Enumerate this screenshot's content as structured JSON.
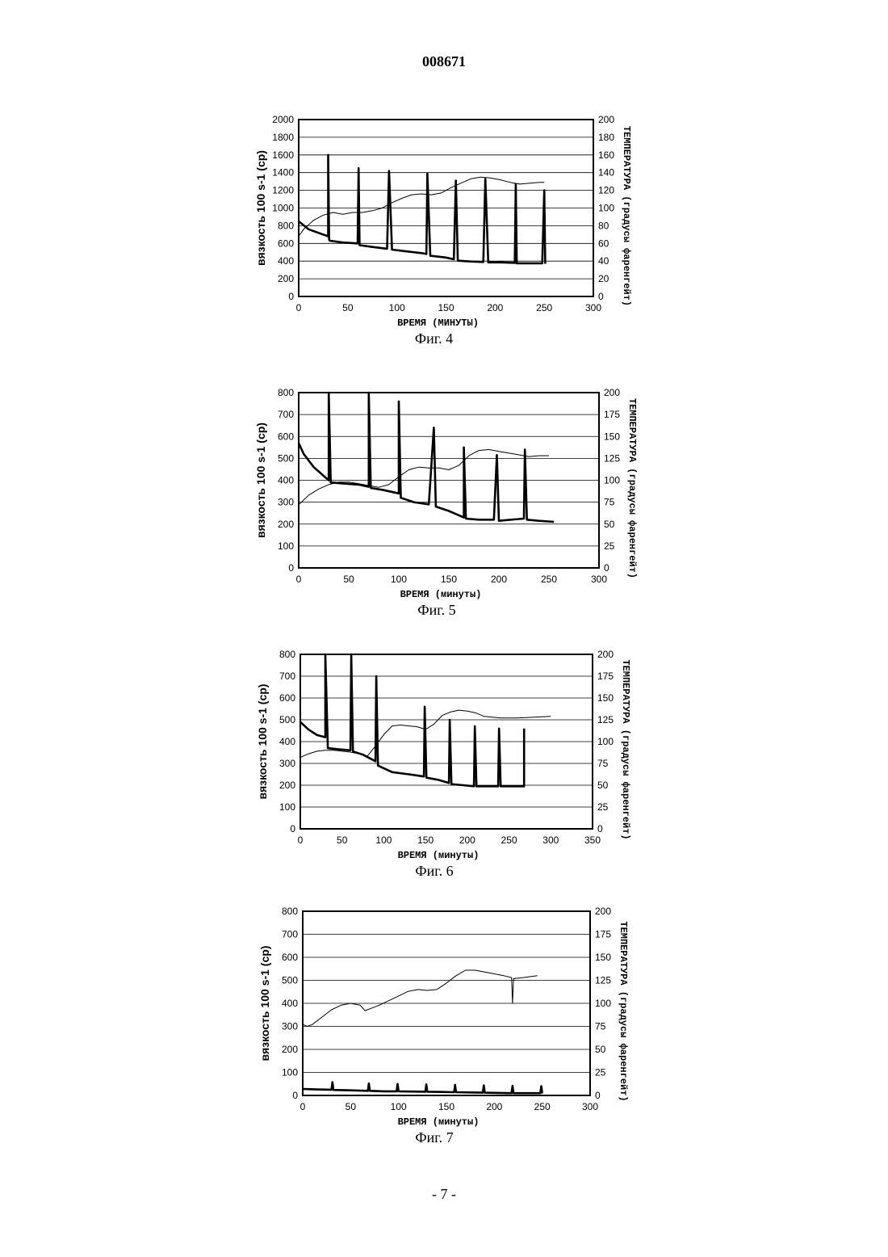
{
  "header": {
    "doc_number": "008671"
  },
  "footer": {
    "page_number": "- 7 -"
  },
  "chart_data": [
    {
      "type": "line",
      "caption": "Фиг. 4",
      "ylabel": "вязкость 100 s-1 (cp)",
      "y2label": "ТЕМПЕРАТУРА (градусы фаренгейт)",
      "xlabel": "ВРЕМЯ (МИНУТЫ)",
      "xlim": [
        0,
        300
      ],
      "xticks": [
        0,
        50,
        100,
        150,
        200,
        250,
        300
      ],
      "ylim": [
        0,
        2000
      ],
      "yticks": [
        0,
        200,
        400,
        600,
        800,
        1000,
        1200,
        1400,
        1600,
        1800,
        2000
      ],
      "y2lim": [
        0,
        200
      ],
      "y2ticks": [
        0,
        20,
        40,
        60,
        80,
        100,
        120,
        140,
        160,
        180,
        200
      ],
      "grid": true,
      "series": [
        {
          "axis": "left",
          "weight": "thick",
          "x": [
            0,
            10,
            20,
            30,
            30,
            31,
            32,
            45,
            60,
            61,
            62,
            75,
            90,
            92,
            95,
            110,
            125,
            130,
            131,
            134,
            150,
            158,
            160,
            162,
            175,
            188,
            190,
            193,
            205,
            220,
            221,
            222,
            235,
            248,
            250,
            251
          ],
          "y": [
            850,
            760,
            720,
            680,
            1600,
            640,
            630,
            610,
            600,
            1450,
            580,
            560,
            540,
            1420,
            530,
            510,
            490,
            480,
            1390,
            460,
            440,
            420,
            1310,
            405,
            395,
            390,
            1330,
            385,
            385,
            380,
            1270,
            375,
            375,
            375,
            1200,
            370
          ]
        },
        {
          "axis": "right",
          "weight": "thin",
          "x": [
            0,
            5,
            15,
            25,
            35,
            45,
            55,
            65,
            75,
            85,
            95,
            105,
            115,
            125,
            135,
            145,
            155,
            165,
            175,
            185,
            195,
            205,
            215,
            225,
            235,
            245,
            250
          ],
          "y": [
            68,
            76,
            86,
            92,
            95,
            93,
            95,
            95,
            97,
            100,
            106,
            111,
            115,
            116,
            115,
            117,
            123,
            128,
            133,
            135,
            134,
            132,
            129,
            127,
            128,
            129,
            129
          ]
        }
      ]
    },
    {
      "type": "line",
      "caption": "Фиг. 5",
      "ylabel": "вязкость 100 s-1 (cp)",
      "y2label": "ТЕМПЕРАТУРА (градусы фаренгейт)",
      "xlabel": "ВРЕМЯ (минуты)",
      "xlim": [
        0,
        300
      ],
      "xticks": [
        0,
        50,
        100,
        150,
        200,
        250,
        300
      ],
      "ylim": [
        0,
        800
      ],
      "yticks": [
        0,
        100,
        200,
        300,
        400,
        500,
        600,
        700,
        800
      ],
      "y2lim": [
        0,
        200
      ],
      "y2ticks": [
        0,
        25,
        50,
        75,
        100,
        125,
        150,
        175,
        200
      ],
      "grid": true,
      "series": [
        {
          "axis": "left",
          "weight": "thick",
          "x": [
            0,
            5,
            15,
            25,
            30,
            30,
            32,
            45,
            60,
            70,
            70,
            72,
            85,
            100,
            100,
            102,
            115,
            130,
            135,
            137,
            150,
            165,
            165,
            167,
            180,
            195,
            198,
            200,
            212,
            225,
            226,
            228,
            240,
            255
          ],
          "y": [
            570,
            520,
            460,
            420,
            400,
            800,
            390,
            385,
            380,
            370,
            800,
            365,
            355,
            340,
            760,
            320,
            300,
            290,
            640,
            280,
            260,
            230,
            550,
            225,
            220,
            220,
            515,
            215,
            220,
            225,
            540,
            220,
            215,
            210
          ]
        },
        {
          "axis": "right",
          "weight": "thin",
          "x": [
            0,
            10,
            20,
            30,
            40,
            50,
            60,
            70,
            80,
            90,
            100,
            110,
            120,
            130,
            140,
            150,
            160,
            170,
            180,
            190,
            200,
            210,
            220,
            230,
            240,
            250
          ],
          "y": [
            72,
            83,
            90,
            95,
            98,
            98,
            96,
            94,
            92,
            95,
            104,
            112,
            115,
            114,
            114,
            112,
            117,
            128,
            134,
            135,
            133,
            131,
            129,
            127,
            128,
            128
          ]
        }
      ]
    },
    {
      "type": "line",
      "caption": "Фиг. 6",
      "ylabel": "вязкость 100 s-1 (cp)",
      "y2label": "ТЕМПЕРАТУРА (градусы фаренгейт)",
      "xlabel": "ВРЕМЯ (минуты)",
      "xlim": [
        0,
        350
      ],
      "xticks": [
        0,
        50,
        100,
        150,
        200,
        250,
        300,
        350
      ],
      "ylim": [
        0,
        800
      ],
      "yticks": [
        0,
        100,
        200,
        300,
        400,
        500,
        600,
        700,
        800
      ],
      "y2lim": [
        0,
        200
      ],
      "y2ticks": [
        0,
        25,
        50,
        75,
        100,
        125,
        150,
        175,
        200
      ],
      "grid": true,
      "series": [
        {
          "axis": "left",
          "weight": "thick",
          "x": [
            0,
            10,
            20,
            30,
            30,
            33,
            45,
            60,
            61,
            63,
            75,
            90,
            91,
            93,
            110,
            130,
            148,
            149,
            151,
            165,
            178,
            179,
            181,
            195,
            208,
            209,
            211,
            225,
            237,
            238,
            240,
            255,
            268,
            268
          ],
          "y": [
            490,
            455,
            430,
            420,
            800,
            370,
            365,
            360,
            800,
            355,
            340,
            310,
            700,
            290,
            260,
            250,
            240,
            560,
            235,
            225,
            210,
            500,
            205,
            200,
            195,
            470,
            195,
            195,
            195,
            460,
            195,
            195,
            195,
            460
          ]
        },
        {
          "axis": "right",
          "weight": "thin",
          "x": [
            0,
            10,
            20,
            30,
            40,
            50,
            60,
            70,
            80,
            90,
            100,
            110,
            120,
            130,
            140,
            150,
            160,
            170,
            180,
            190,
            200,
            210,
            220,
            240,
            260,
            280,
            300
          ],
          "y": [
            82,
            86,
            89,
            90,
            90,
            89,
            88,
            86,
            83,
            95,
            108,
            118,
            119,
            118,
            117,
            114,
            120,
            130,
            134,
            136,
            135,
            133,
            129,
            127,
            127,
            128,
            129
          ]
        }
      ]
    },
    {
      "type": "line",
      "caption": "Фиг. 7",
      "ylabel": "вязкость 100 s-1 (cp)",
      "y2label": "ТЕМПЕРАТУРА (градусы фаренгейт)",
      "xlabel": "ВРЕМЯ (минуты)",
      "xlim": [
        0,
        300
      ],
      "xticks": [
        0,
        50,
        100,
        150,
        200,
        250,
        300
      ],
      "ylim": [
        0,
        800
      ],
      "yticks": [
        0,
        100,
        200,
        300,
        400,
        500,
        600,
        700,
        800
      ],
      "y2lim": [
        0,
        200
      ],
      "y2ticks": [
        0,
        25,
        50,
        75,
        100,
        125,
        150,
        175,
        200
      ],
      "grid": true,
      "series": [
        {
          "axis": "left",
          "weight": "thick",
          "x": [
            0,
            15,
            30,
            31,
            32,
            50,
            68,
            69,
            70,
            85,
            98,
            99,
            100,
            115,
            128,
            129,
            130,
            145,
            158,
            159,
            160,
            175,
            188,
            189,
            190,
            205,
            218,
            219,
            220,
            235,
            248,
            249,
            250
          ],
          "y": [
            28,
            26,
            25,
            58,
            24,
            22,
            20,
            52,
            20,
            18,
            18,
            50,
            18,
            17,
            16,
            48,
            16,
            15,
            14,
            46,
            14,
            13,
            12,
            44,
            12,
            11,
            10,
            42,
            10,
            10,
            10,
            40,
            9
          ]
        },
        {
          "axis": "right",
          "weight": "thin",
          "x": [
            0,
            5,
            10,
            20,
            30,
            40,
            50,
            60,
            65,
            70,
            80,
            90,
            100,
            110,
            120,
            130,
            140,
            150,
            160,
            170,
            180,
            190,
            200,
            210,
            218,
            219,
            220,
            221,
            230,
            245
          ],
          "y": [
            77,
            75,
            77,
            85,
            93,
            98,
            100,
            98,
            92,
            94,
            98,
            103,
            108,
            113,
            115,
            114,
            115,
            122,
            130,
            136,
            136,
            134,
            132,
            130,
            128,
            100,
            127,
            127,
            128,
            130
          ]
        }
      ]
    }
  ]
}
